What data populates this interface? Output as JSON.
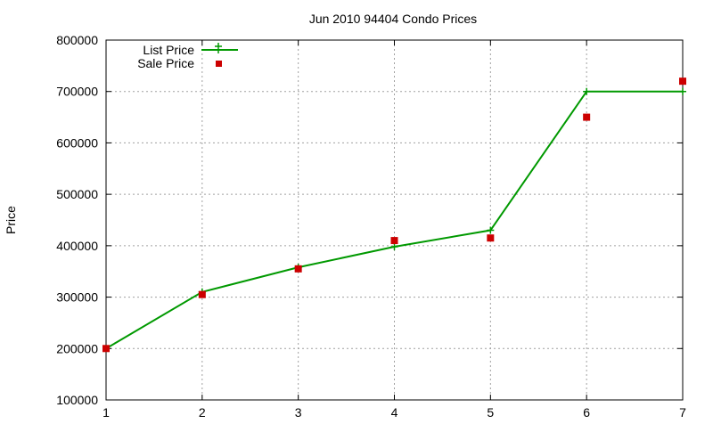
{
  "chart_data": {
    "type": "line",
    "title": "Jun 2010 94404 Condo Prices",
    "xlabel": "",
    "ylabel": "Price",
    "xlim": [
      1,
      7
    ],
    "ylim": [
      100000,
      800000
    ],
    "x_ticks": [
      "1",
      "2",
      "3",
      "4",
      "5",
      "6",
      "7"
    ],
    "y_ticks": [
      "100000",
      "200000",
      "300000",
      "400000",
      "500000",
      "600000",
      "700000",
      "800000"
    ],
    "grid": true,
    "legend_position": "top-left",
    "series": [
      {
        "name": "List Price",
        "style": "line-with-plus-markers",
        "color": "#009900",
        "x": [
          1,
          2,
          3,
          4,
          5,
          6,
          7
        ],
        "values": [
          200000,
          310000,
          358000,
          398000,
          430000,
          700000,
          700000
        ]
      },
      {
        "name": "Sale Price",
        "style": "square-markers",
        "color": "#cc0000",
        "x": [
          1,
          2,
          3,
          4,
          5,
          6,
          7
        ],
        "values": [
          200000,
          305000,
          355000,
          410000,
          415000,
          650000,
          720000
        ]
      }
    ]
  }
}
